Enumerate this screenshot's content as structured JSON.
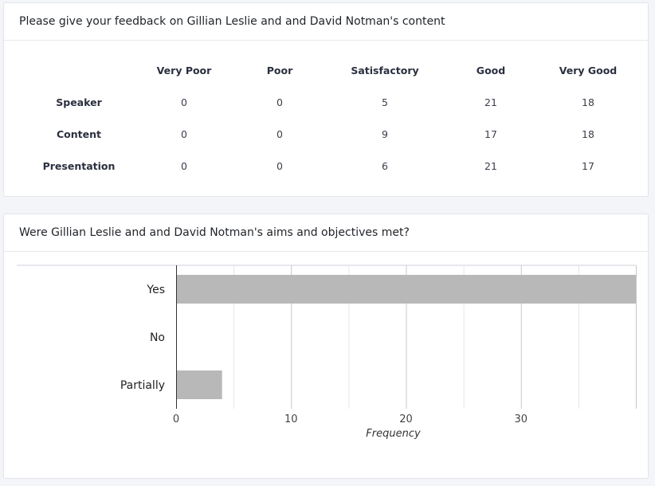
{
  "feedback": {
    "title": "Please give your feedback on Gillian Leslie and and David Notman's content",
    "columns": [
      "Very Poor",
      "Poor",
      "Satisfactory",
      "Good",
      "Very Good"
    ],
    "rows": [
      {
        "label": "Speaker",
        "values": [
          "0",
          "0",
          "5",
          "21",
          "18"
        ]
      },
      {
        "label": "Content",
        "values": [
          "0",
          "0",
          "9",
          "17",
          "18"
        ]
      },
      {
        "label": "Presentation",
        "values": [
          "0",
          "0",
          "6",
          "21",
          "17"
        ]
      }
    ]
  },
  "aims": {
    "title": "Were Gillian Leslie and and David Notman's aims and objectives met?"
  },
  "chart_data": {
    "type": "bar",
    "orientation": "horizontal",
    "categories": [
      "Yes",
      "No",
      "Partially"
    ],
    "values": [
      40,
      0,
      4
    ],
    "xlabel": "Frequency",
    "ylabel": "",
    "xlim": [
      0,
      40
    ],
    "xticks": [
      0,
      10,
      20,
      30
    ],
    "grid": true,
    "bar_color": "#b8b8b8"
  }
}
